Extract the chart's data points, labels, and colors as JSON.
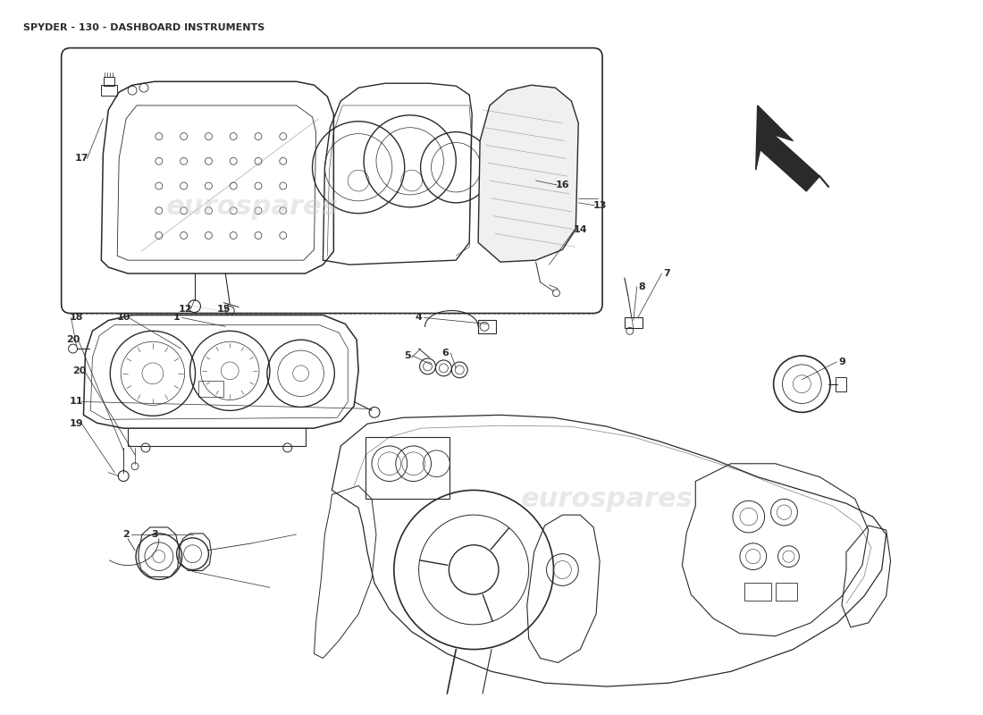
{
  "title": "SPYDER - 130 - DASHBOARD INSTRUMENTS",
  "title_fontsize": 8,
  "background_color": "#ffffff",
  "line_color": "#2a2a2a",
  "watermark_color": "#cccccc",
  "watermark_text": "eurospares",
  "fig_width": 11.0,
  "fig_height": 8.0,
  "dpi": 100,
  "label_fontsize": 8
}
